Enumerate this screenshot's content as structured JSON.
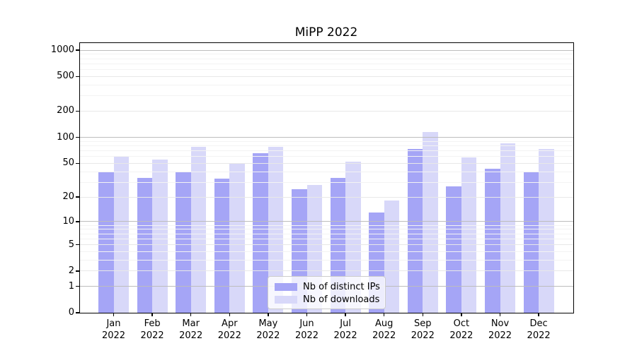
{
  "chart_data": {
    "type": "bar",
    "title": "MiPP 2022",
    "categories": [
      "Jan 2022",
      "Feb 2022",
      "Mar 2022",
      "Apr 2022",
      "May 2022",
      "Jun 2022",
      "Jul 2022",
      "Aug 2022",
      "Sep 2022",
      "Oct 2022",
      "Nov 2022",
      "Dec 2022"
    ],
    "series": [
      {
        "name": "Nb of distinct IPs",
        "color": "#a5a5f6",
        "values": [
          40,
          34,
          40,
          33,
          65,
          25,
          34,
          13,
          73,
          27,
          43,
          40
        ]
      },
      {
        "name": "Nb of downloads",
        "color": "#d8d8f9",
        "values": [
          60,
          55,
          78,
          49,
          78,
          28,
          52,
          18,
          116,
          58,
          85,
          73
        ]
      }
    ],
    "yscale": "log10(value+1)",
    "ylim": [
      0,
      1205
    ],
    "yticks": [
      0,
      1,
      2,
      5,
      10,
      20,
      50,
      100,
      200,
      500,
      1000
    ],
    "major_gridline_values": [
      1,
      10,
      100,
      1000
    ],
    "labeled_gridline_values": [
      2,
      5,
      20,
      50,
      200,
      500
    ],
    "minor_gridline_values": [
      3,
      4,
      6,
      7,
      8,
      9,
      30,
      40,
      60,
      70,
      80,
      90,
      300,
      400,
      600,
      700,
      800,
      900
    ],
    "grid": true,
    "legend_position": "lower center",
    "xlabel": "",
    "ylabel": ""
  },
  "colors": {
    "major_grid": "#bdbdbd",
    "labeled_grid": "#e8e8e8",
    "minor_grid": "#f3f3f3",
    "spine": "#000000",
    "legend_border": "#cccccc",
    "background": "#ffffff"
  }
}
